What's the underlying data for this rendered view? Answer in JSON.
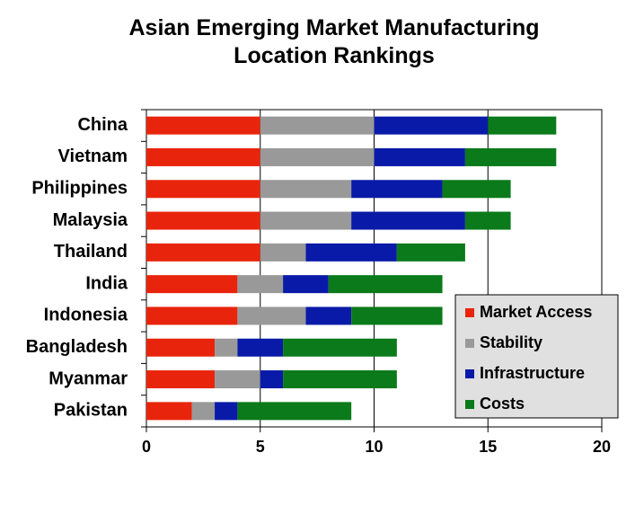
{
  "chart_data": {
    "type": "stacked-barh",
    "title": "Asian Emerging Market Manufacturing Location Rankings",
    "categories": [
      "China",
      "Vietnam",
      "Philippines",
      "Malaysia",
      "Thailand",
      "India",
      "Indonesia",
      "Bangladesh",
      "Myanmar",
      "Pakistan"
    ],
    "series": [
      {
        "name": "Market Access",
        "color": "#e8250c",
        "values": [
          5,
          5,
          5,
          5,
          5,
          4,
          4,
          3,
          3,
          2
        ]
      },
      {
        "name": "Stability",
        "color": "#999999",
        "values": [
          5,
          5,
          4,
          4,
          2,
          2,
          3,
          1,
          2,
          1
        ]
      },
      {
        "name": "Infrastructure",
        "color": "#0a1aa8",
        "values": [
          5,
          4,
          4,
          5,
          4,
          2,
          2,
          2,
          1,
          1
        ]
      },
      {
        "name": "Costs",
        "color": "#0a7a1a",
        "values": [
          3,
          4,
          3,
          2,
          3,
          5,
          4,
          5,
          5,
          5
        ]
      }
    ],
    "xlim": [
      0,
      20
    ],
    "xticks": [
      0,
      5,
      10,
      15,
      20
    ],
    "grid": true,
    "legend": "lower right"
  }
}
